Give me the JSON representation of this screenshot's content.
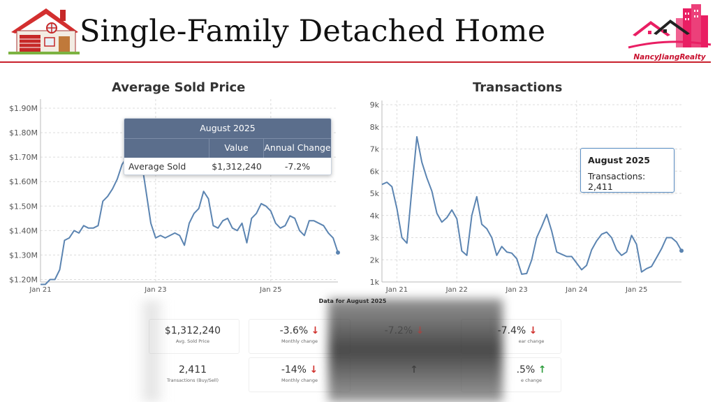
{
  "header": {
    "title": "Single-Family Detached Home",
    "brand": "NancyJiangRealty"
  },
  "colors": {
    "line": "#5b84b1",
    "accent_red": "#c8202c",
    "tooltip_header": "#5b6e8c",
    "down": "#d0312d",
    "up": "#2e9d3d"
  },
  "chart_data": [
    {
      "type": "line",
      "title": "Average Sold Price",
      "y_ticks": [
        "$1.20M",
        "$1.30M",
        "$1.40M",
        "$1.50M",
        "$1.60M",
        "$1.70M",
        "$1.80M",
        "$1.90M"
      ],
      "x_ticks": [
        "Jan 21",
        "Jan 23",
        "Jan 25"
      ],
      "ylim": [
        1.19,
        1.92
      ],
      "grid": true,
      "x_month_index_of_ticks": [
        0,
        24,
        48
      ],
      "series": [
        {
          "values": [
            1.18,
            1.18,
            1.2,
            1.2,
            1.24,
            1.36,
            1.37,
            1.4,
            1.39,
            1.42,
            1.41,
            1.41,
            1.42,
            1.52,
            1.54,
            1.57,
            1.61,
            1.67,
            1.7,
            1.75,
            1.73,
            1.69,
            1.56,
            1.43,
            1.37,
            1.38,
            1.37,
            1.38,
            1.39,
            1.38,
            1.34,
            1.43,
            1.47,
            1.49,
            1.56,
            1.53,
            1.42,
            1.41,
            1.44,
            1.45,
            1.41,
            1.4,
            1.43,
            1.35,
            1.45,
            1.47,
            1.51,
            1.5,
            1.48,
            1.43,
            1.41,
            1.42,
            1.46,
            1.45,
            1.4,
            1.38,
            1.44,
            1.44,
            1.43,
            1.42,
            1.39,
            1.37,
            1.31
          ]
        }
      ],
      "tooltip": {
        "month": "August 2025",
        "col_value": "Value",
        "col_change": "Annual Change",
        "row_label": "Average Sold Price",
        "row_value": "$1,312,240",
        "row_change": "-7.2%"
      }
    },
    {
      "type": "line",
      "title": "Transactions",
      "y_ticks": [
        "1k",
        "2k",
        "3k",
        "4k",
        "5k",
        "6k",
        "7k",
        "8k",
        "9k"
      ],
      "x_ticks": [
        "Jan 21",
        "Jan 22",
        "Jan 23",
        "Jan 24",
        "Jan 25"
      ],
      "ylim": [
        1000,
        9000
      ],
      "grid": true,
      "x_month_index_of_ticks": [
        3,
        15,
        27,
        39,
        51
      ],
      "series": [
        {
          "values": [
            5400,
            5500,
            5300,
            4300,
            3000,
            2750,
            5200,
            7550,
            6400,
            5700,
            5100,
            4100,
            3700,
            3900,
            4250,
            3850,
            2400,
            2200,
            4000,
            4850,
            3600,
            3400,
            3000,
            2200,
            2600,
            2350,
            2300,
            2050,
            1350,
            1380,
            2000,
            3000,
            3500,
            4050,
            3300,
            2350,
            2250,
            2150,
            2150,
            1850,
            1550,
            1750,
            2450,
            2850,
            3150,
            3250,
            3000,
            2450,
            2200,
            2350,
            3100,
            2700,
            1450,
            1600,
            1700,
            2100,
            2500,
            3000,
            3000,
            2800,
            2411
          ]
        }
      ],
      "tooltip": {
        "month": "August 2025",
        "label": "Transactions: 2,411"
      }
    }
  ],
  "stats": {
    "heading": "Data for August 2025",
    "row1": {
      "value": "$1,312,240",
      "label": "Avg. Sold Price",
      "monthly": "-3.6%",
      "monthly_label": "Monthly change",
      "annual": "-7.2%",
      "yearly": "-7.4%",
      "yearly_label": "ear change"
    },
    "row2": {
      "value": "2,411",
      "label": "Transactions (Buy/Sell)",
      "monthly": "-14%",
      "monthly_label": "Monthly change",
      "yearly": ".5%",
      "yearly_label": "e change"
    },
    "arrow_down": "↓",
    "arrow_up": "↑"
  }
}
